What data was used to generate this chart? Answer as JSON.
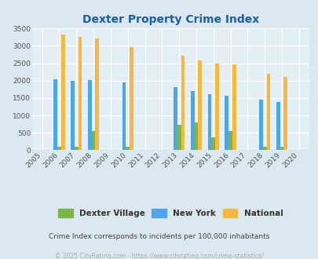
{
  "title": "Dexter Property Crime Index",
  "subtitle": "Crime Index corresponds to incidents per 100,000 inhabitants",
  "footer": "© 2025 CityRating.com - https://www.cityrating.com/crime-statistics/",
  "years": [
    2005,
    2006,
    2007,
    2008,
    2009,
    2010,
    2011,
    2012,
    2013,
    2014,
    2015,
    2016,
    2017,
    2018,
    2019,
    2020
  ],
  "dexter": [
    0,
    100,
    100,
    540,
    0,
    100,
    0,
    0,
    730,
    810,
    380,
    560,
    0,
    100,
    100,
    0
  ],
  "newyork": [
    0,
    2050,
    2000,
    2010,
    0,
    1950,
    0,
    0,
    1820,
    1700,
    1600,
    1560,
    0,
    1450,
    1380,
    0
  ],
  "national": [
    0,
    3330,
    3260,
    3210,
    0,
    2960,
    0,
    0,
    2720,
    2590,
    2490,
    2470,
    0,
    2200,
    2110,
    0
  ],
  "ylim": [
    0,
    3500
  ],
  "yticks": [
    0,
    500,
    1000,
    1500,
    2000,
    2500,
    3000,
    3500
  ],
  "bar_width": 0.22,
  "color_dexter": "#7ab648",
  "color_newyork": "#4da6e8",
  "color_national": "#f5b942",
  "bg_color": "#dce8f0",
  "plot_bg": "#dce8f0",
  "chart_bg": "#e4eff5",
  "grid_color": "#ffffff",
  "title_color": "#1a5fa8",
  "subtitle_color": "#444444",
  "footer_color": "#aaaaaa",
  "legend_labels": [
    "Dexter Village",
    "New York",
    "National"
  ]
}
